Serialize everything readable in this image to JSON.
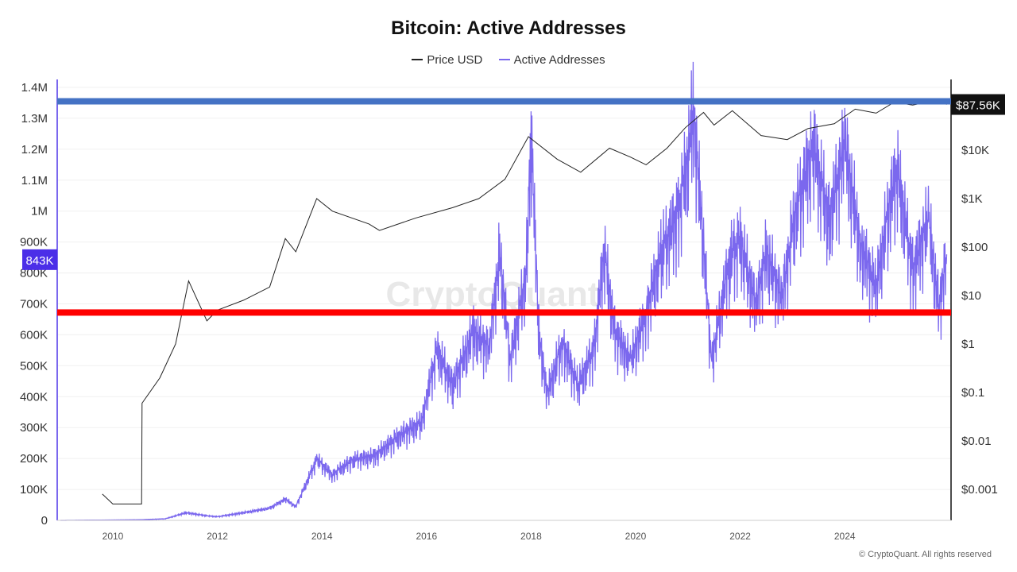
{
  "chart_data": {
    "type": "line",
    "title": "Bitcoin: Active Addresses",
    "legend": [
      "Price USD",
      "Active Addresses"
    ],
    "legend_placement": "top-center",
    "colors": {
      "price": "#222222",
      "active": "#7b68ee",
      "blue_line": "#4472c4",
      "red_line": "#ff0000",
      "left_badge": "#4b2ee8",
      "right_badge": "#111111"
    },
    "left_axis": {
      "ticks": [
        "0",
        "100K",
        "200K",
        "300K",
        "400K",
        "500K",
        "600K",
        "700K",
        "800K",
        "900K",
        "1M",
        "1.1M",
        "1.2M",
        "1.3M",
        "1.4M"
      ],
      "ylim": [
        0,
        1400000
      ]
    },
    "right_axis": {
      "scale": "log",
      "ticks": [
        "$0.001",
        "$0.01",
        "$0.1",
        "$1",
        "$10",
        "$100",
        "$1K",
        "$10K"
      ]
    },
    "x_ticks": [
      "2010",
      "2012",
      "2014",
      "2016",
      "2018",
      "2020",
      "2022",
      "2024"
    ],
    "xlim": [
      2009,
      2026
    ],
    "grid": true,
    "series": [
      {
        "name": "Active Addresses",
        "axis": "left",
        "points": [
          [
            2009.0,
            0
          ],
          [
            2010.5,
            2000
          ],
          [
            2011.0,
            5000
          ],
          [
            2011.4,
            25000
          ],
          [
            2011.8,
            15000
          ],
          [
            2012.0,
            12000
          ],
          [
            2012.5,
            25000
          ],
          [
            2013.0,
            40000
          ],
          [
            2013.3,
            70000
          ],
          [
            2013.5,
            45000
          ],
          [
            2013.9,
            200000
          ],
          [
            2014.2,
            150000
          ],
          [
            2014.6,
            200000
          ],
          [
            2015.0,
            210000
          ],
          [
            2015.5,
            280000
          ],
          [
            2015.9,
            320000
          ],
          [
            2016.0,
            400000
          ],
          [
            2016.2,
            560000
          ],
          [
            2016.5,
            440000
          ],
          [
            2016.9,
            620000
          ],
          [
            2017.2,
            560000
          ],
          [
            2017.4,
            880000
          ],
          [
            2017.6,
            520000
          ],
          [
            2017.9,
            800000
          ],
          [
            2018.0,
            1270000
          ],
          [
            2018.15,
            620000
          ],
          [
            2018.3,
            410000
          ],
          [
            2018.6,
            580000
          ],
          [
            2018.9,
            440000
          ],
          [
            2019.2,
            560000
          ],
          [
            2019.4,
            880000
          ],
          [
            2019.6,
            620000
          ],
          [
            2019.9,
            520000
          ],
          [
            2020.2,
            680000
          ],
          [
            2020.5,
            880000
          ],
          [
            2020.8,
            1000000
          ],
          [
            2021.0,
            1180000
          ],
          [
            2021.1,
            1350000
          ],
          [
            2021.3,
            900000
          ],
          [
            2021.45,
            520000
          ],
          [
            2021.8,
            860000
          ],
          [
            2022.0,
            920000
          ],
          [
            2022.3,
            700000
          ],
          [
            2022.5,
            880000
          ],
          [
            2022.8,
            720000
          ],
          [
            2023.0,
            960000
          ],
          [
            2023.4,
            1230000
          ],
          [
            2023.7,
            980000
          ],
          [
            2024.0,
            1230000
          ],
          [
            2024.3,
            900000
          ],
          [
            2024.6,
            760000
          ],
          [
            2024.8,
            980000
          ],
          [
            2025.0,
            1150000
          ],
          [
            2025.3,
            820000
          ],
          [
            2025.6,
            980000
          ],
          [
            2025.8,
            700000
          ],
          [
            2025.95,
            860000
          ]
        ]
      },
      {
        "name": "Price USD",
        "axis": "right",
        "points": [
          [
            2009.8,
            0.0008
          ],
          [
            2010.0,
            0.0005
          ],
          [
            2010.55,
            0.0005
          ],
          [
            2010.56,
            0.06
          ],
          [
            2010.9,
            0.2
          ],
          [
            2011.2,
            1
          ],
          [
            2011.45,
            20
          ],
          [
            2011.8,
            3
          ],
          [
            2012.0,
            5
          ],
          [
            2012.5,
            8
          ],
          [
            2013.0,
            15
          ],
          [
            2013.3,
            150
          ],
          [
            2013.5,
            80
          ],
          [
            2013.9,
            1000
          ],
          [
            2014.2,
            550
          ],
          [
            2014.9,
            300
          ],
          [
            2015.1,
            220
          ],
          [
            2015.8,
            400
          ],
          [
            2016.5,
            650
          ],
          [
            2017.0,
            1000
          ],
          [
            2017.5,
            2500
          ],
          [
            2017.95,
            19000
          ],
          [
            2018.5,
            6500
          ],
          [
            2018.95,
            3500
          ],
          [
            2019.5,
            11000
          ],
          [
            2019.9,
            7200
          ],
          [
            2020.2,
            5000
          ],
          [
            2020.6,
            11000
          ],
          [
            2020.95,
            29000
          ],
          [
            2021.3,
            60000
          ],
          [
            2021.5,
            33000
          ],
          [
            2021.85,
            65000
          ],
          [
            2022.4,
            20000
          ],
          [
            2022.9,
            16500
          ],
          [
            2023.3,
            28000
          ],
          [
            2023.8,
            35000
          ],
          [
            2024.2,
            70000
          ],
          [
            2024.6,
            58000
          ],
          [
            2024.95,
            98000
          ],
          [
            2025.3,
            85000
          ],
          [
            2025.8,
            110000
          ],
          [
            2025.95,
            87560
          ]
        ]
      }
    ],
    "reference_lines": [
      {
        "axis": "left",
        "value": 1355000,
        "color": "#4472c4"
      },
      {
        "axis": "left",
        "value": 672000,
        "color": "#ff0000"
      }
    ],
    "badges": {
      "left": "843K",
      "left_value": 843000,
      "right": "$87.56K",
      "right_value": 87560
    }
  },
  "watermark": "CryptoQuant",
  "copyright": "© CryptoQuant. All rights reserved"
}
